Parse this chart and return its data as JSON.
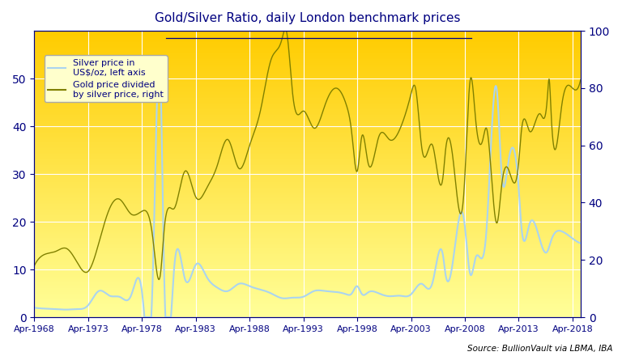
{
  "title": "Gold/Silver Ratio, daily London benchmark prices",
  "source_text": "Source: BullionVault via LBMA, IBA",
  "silver_label": "Silver price in\nUS$/oz, left axis",
  "ratio_label": "Gold price divided\nby silver price, right",
  "silver_color": "#aad4f0",
  "ratio_color": "#808000",
  "background_top": "#ffcc00",
  "background_bottom": "#ffff99",
  "ylim_left": [
    0,
    60
  ],
  "ylim_right": [
    0,
    100
  ],
  "yticks_left": [
    0,
    10,
    20,
    30,
    40,
    50
  ],
  "yticks_right": [
    0,
    20,
    40,
    60,
    80,
    100
  ],
  "xtick_years": [
    1968,
    1973,
    1978,
    1983,
    1988,
    1993,
    1998,
    2003,
    2008,
    2013,
    2018
  ],
  "title_color": "#000080",
  "tick_color": "#000080",
  "grid_color": "#ffffff",
  "silver_keypoints": [
    [
      1968,
      4,
      2.0
    ],
    [
      1969,
      4,
      1.8
    ],
    [
      1970,
      4,
      1.7
    ],
    [
      1971,
      4,
      1.6
    ],
    [
      1972,
      4,
      1.7
    ],
    [
      1973,
      4,
      2.5
    ],
    [
      1974,
      4,
      5.5
    ],
    [
      1975,
      4,
      4.5
    ],
    [
      1976,
      4,
      4.2
    ],
    [
      1977,
      4,
      4.6
    ],
    [
      1978,
      4,
      5.4
    ],
    [
      1979,
      4,
      8.0
    ],
    [
      1980,
      1,
      48.0
    ],
    [
      1980,
      4,
      16.0
    ],
    [
      1981,
      4,
      10.5
    ],
    [
      1982,
      4,
      8.0
    ],
    [
      1983,
      4,
      11.0
    ],
    [
      1984,
      4,
      8.5
    ],
    [
      1985,
      4,
      6.2
    ],
    [
      1986,
      4,
      5.5
    ],
    [
      1987,
      4,
      7.0
    ],
    [
      1988,
      4,
      6.5
    ],
    [
      1989,
      4,
      5.8
    ],
    [
      1990,
      4,
      5.0
    ],
    [
      1991,
      4,
      4.0
    ],
    [
      1992,
      4,
      4.1
    ],
    [
      1993,
      4,
      4.3
    ],
    [
      1994,
      4,
      5.5
    ],
    [
      1995,
      4,
      5.5
    ],
    [
      1996,
      4,
      5.3
    ],
    [
      1997,
      4,
      4.8
    ],
    [
      1997,
      10,
      5.0
    ],
    [
      1998,
      4,
      6.5
    ],
    [
      1998,
      9,
      4.9
    ],
    [
      1999,
      4,
      5.2
    ],
    [
      2000,
      4,
      5.0
    ],
    [
      2001,
      4,
      4.4
    ],
    [
      2002,
      4,
      4.5
    ],
    [
      2003,
      4,
      4.8
    ],
    [
      2004,
      4,
      7.0
    ],
    [
      2005,
      4,
      7.3
    ],
    [
      2006,
      4,
      12.5
    ],
    [
      2006,
      6,
      9.5
    ],
    [
      2007,
      4,
      13.5
    ],
    [
      2008,
      3,
      20.5
    ],
    [
      2008,
      10,
      9.0
    ],
    [
      2009,
      4,
      12.5
    ],
    [
      2010,
      4,
      18.0
    ],
    [
      2011,
      4,
      47.0
    ],
    [
      2011,
      9,
      30.0
    ],
    [
      2012,
      4,
      32.0
    ],
    [
      2013,
      4,
      27.0
    ],
    [
      2013,
      7,
      19.0
    ],
    [
      2014,
      4,
      19.5
    ],
    [
      2015,
      4,
      16.0
    ],
    [
      2015,
      12,
      13.8
    ],
    [
      2016,
      4,
      16.0
    ],
    [
      2017,
      4,
      18.0
    ],
    [
      2018,
      4,
      16.5
    ],
    [
      2019,
      1,
      15.5
    ]
  ],
  "ratio_keypoints": [
    [
      1968,
      4,
      18.0
    ],
    [
      1969,
      4,
      22.0
    ],
    [
      1970,
      4,
      23.0
    ],
    [
      1971,
      4,
      24.0
    ],
    [
      1972,
      4,
      19.0
    ],
    [
      1973,
      4,
      16.0
    ],
    [
      1974,
      4,
      26.0
    ],
    [
      1975,
      4,
      38.0
    ],
    [
      1976,
      4,
      41.0
    ],
    [
      1977,
      4,
      36.0
    ],
    [
      1978,
      4,
      37.0
    ],
    [
      1979,
      4,
      28.0
    ],
    [
      1980,
      1,
      16.0
    ],
    [
      1980,
      4,
      28.0
    ],
    [
      1981,
      4,
      38.0
    ],
    [
      1982,
      4,
      51.0
    ],
    [
      1983,
      4,
      42.0
    ],
    [
      1984,
      4,
      45.0
    ],
    [
      1985,
      4,
      53.0
    ],
    [
      1986,
      4,
      62.0
    ],
    [
      1987,
      4,
      52.0
    ],
    [
      1988,
      4,
      60.0
    ],
    [
      1989,
      4,
      72.0
    ],
    [
      1990,
      4,
      90.0
    ],
    [
      1991,
      4,
      97.0
    ],
    [
      1991,
      9,
      100.0
    ],
    [
      1992,
      4,
      78.0
    ],
    [
      1993,
      4,
      72.0
    ],
    [
      1994,
      4,
      66.0
    ],
    [
      1995,
      4,
      74.0
    ],
    [
      1996,
      4,
      80.0
    ],
    [
      1997,
      4,
      74.0
    ],
    [
      1997,
      10,
      64.0
    ],
    [
      1998,
      4,
      51.0
    ],
    [
      1998,
      9,
      63.0
    ],
    [
      1999,
      4,
      54.0
    ],
    [
      2000,
      4,
      63.0
    ],
    [
      2001,
      4,
      62.0
    ],
    [
      2002,
      4,
      66.0
    ],
    [
      2003,
      4,
      78.0
    ],
    [
      2003,
      9,
      80.0
    ],
    [
      2004,
      4,
      59.0
    ],
    [
      2005,
      4,
      60.0
    ],
    [
      2006,
      4,
      50.0
    ],
    [
      2006,
      6,
      57.0
    ],
    [
      2007,
      4,
      52.0
    ],
    [
      2008,
      3,
      44.0
    ],
    [
      2008,
      10,
      83.0
    ],
    [
      2009,
      4,
      69.0
    ],
    [
      2009,
      12,
      62.0
    ],
    [
      2010,
      4,
      66.0
    ],
    [
      2011,
      4,
      33.0
    ],
    [
      2011,
      9,
      46.0
    ],
    [
      2012,
      4,
      52.0
    ],
    [
      2013,
      4,
      54.0
    ],
    [
      2013,
      7,
      65.0
    ],
    [
      2014,
      4,
      65.0
    ],
    [
      2015,
      4,
      71.0
    ],
    [
      2015,
      12,
      77.0
    ],
    [
      2016,
      2,
      83.0
    ],
    [
      2016,
      4,
      72.0
    ],
    [
      2017,
      4,
      74.0
    ],
    [
      2018,
      4,
      80.0
    ],
    [
      2019,
      1,
      83.0
    ]
  ]
}
